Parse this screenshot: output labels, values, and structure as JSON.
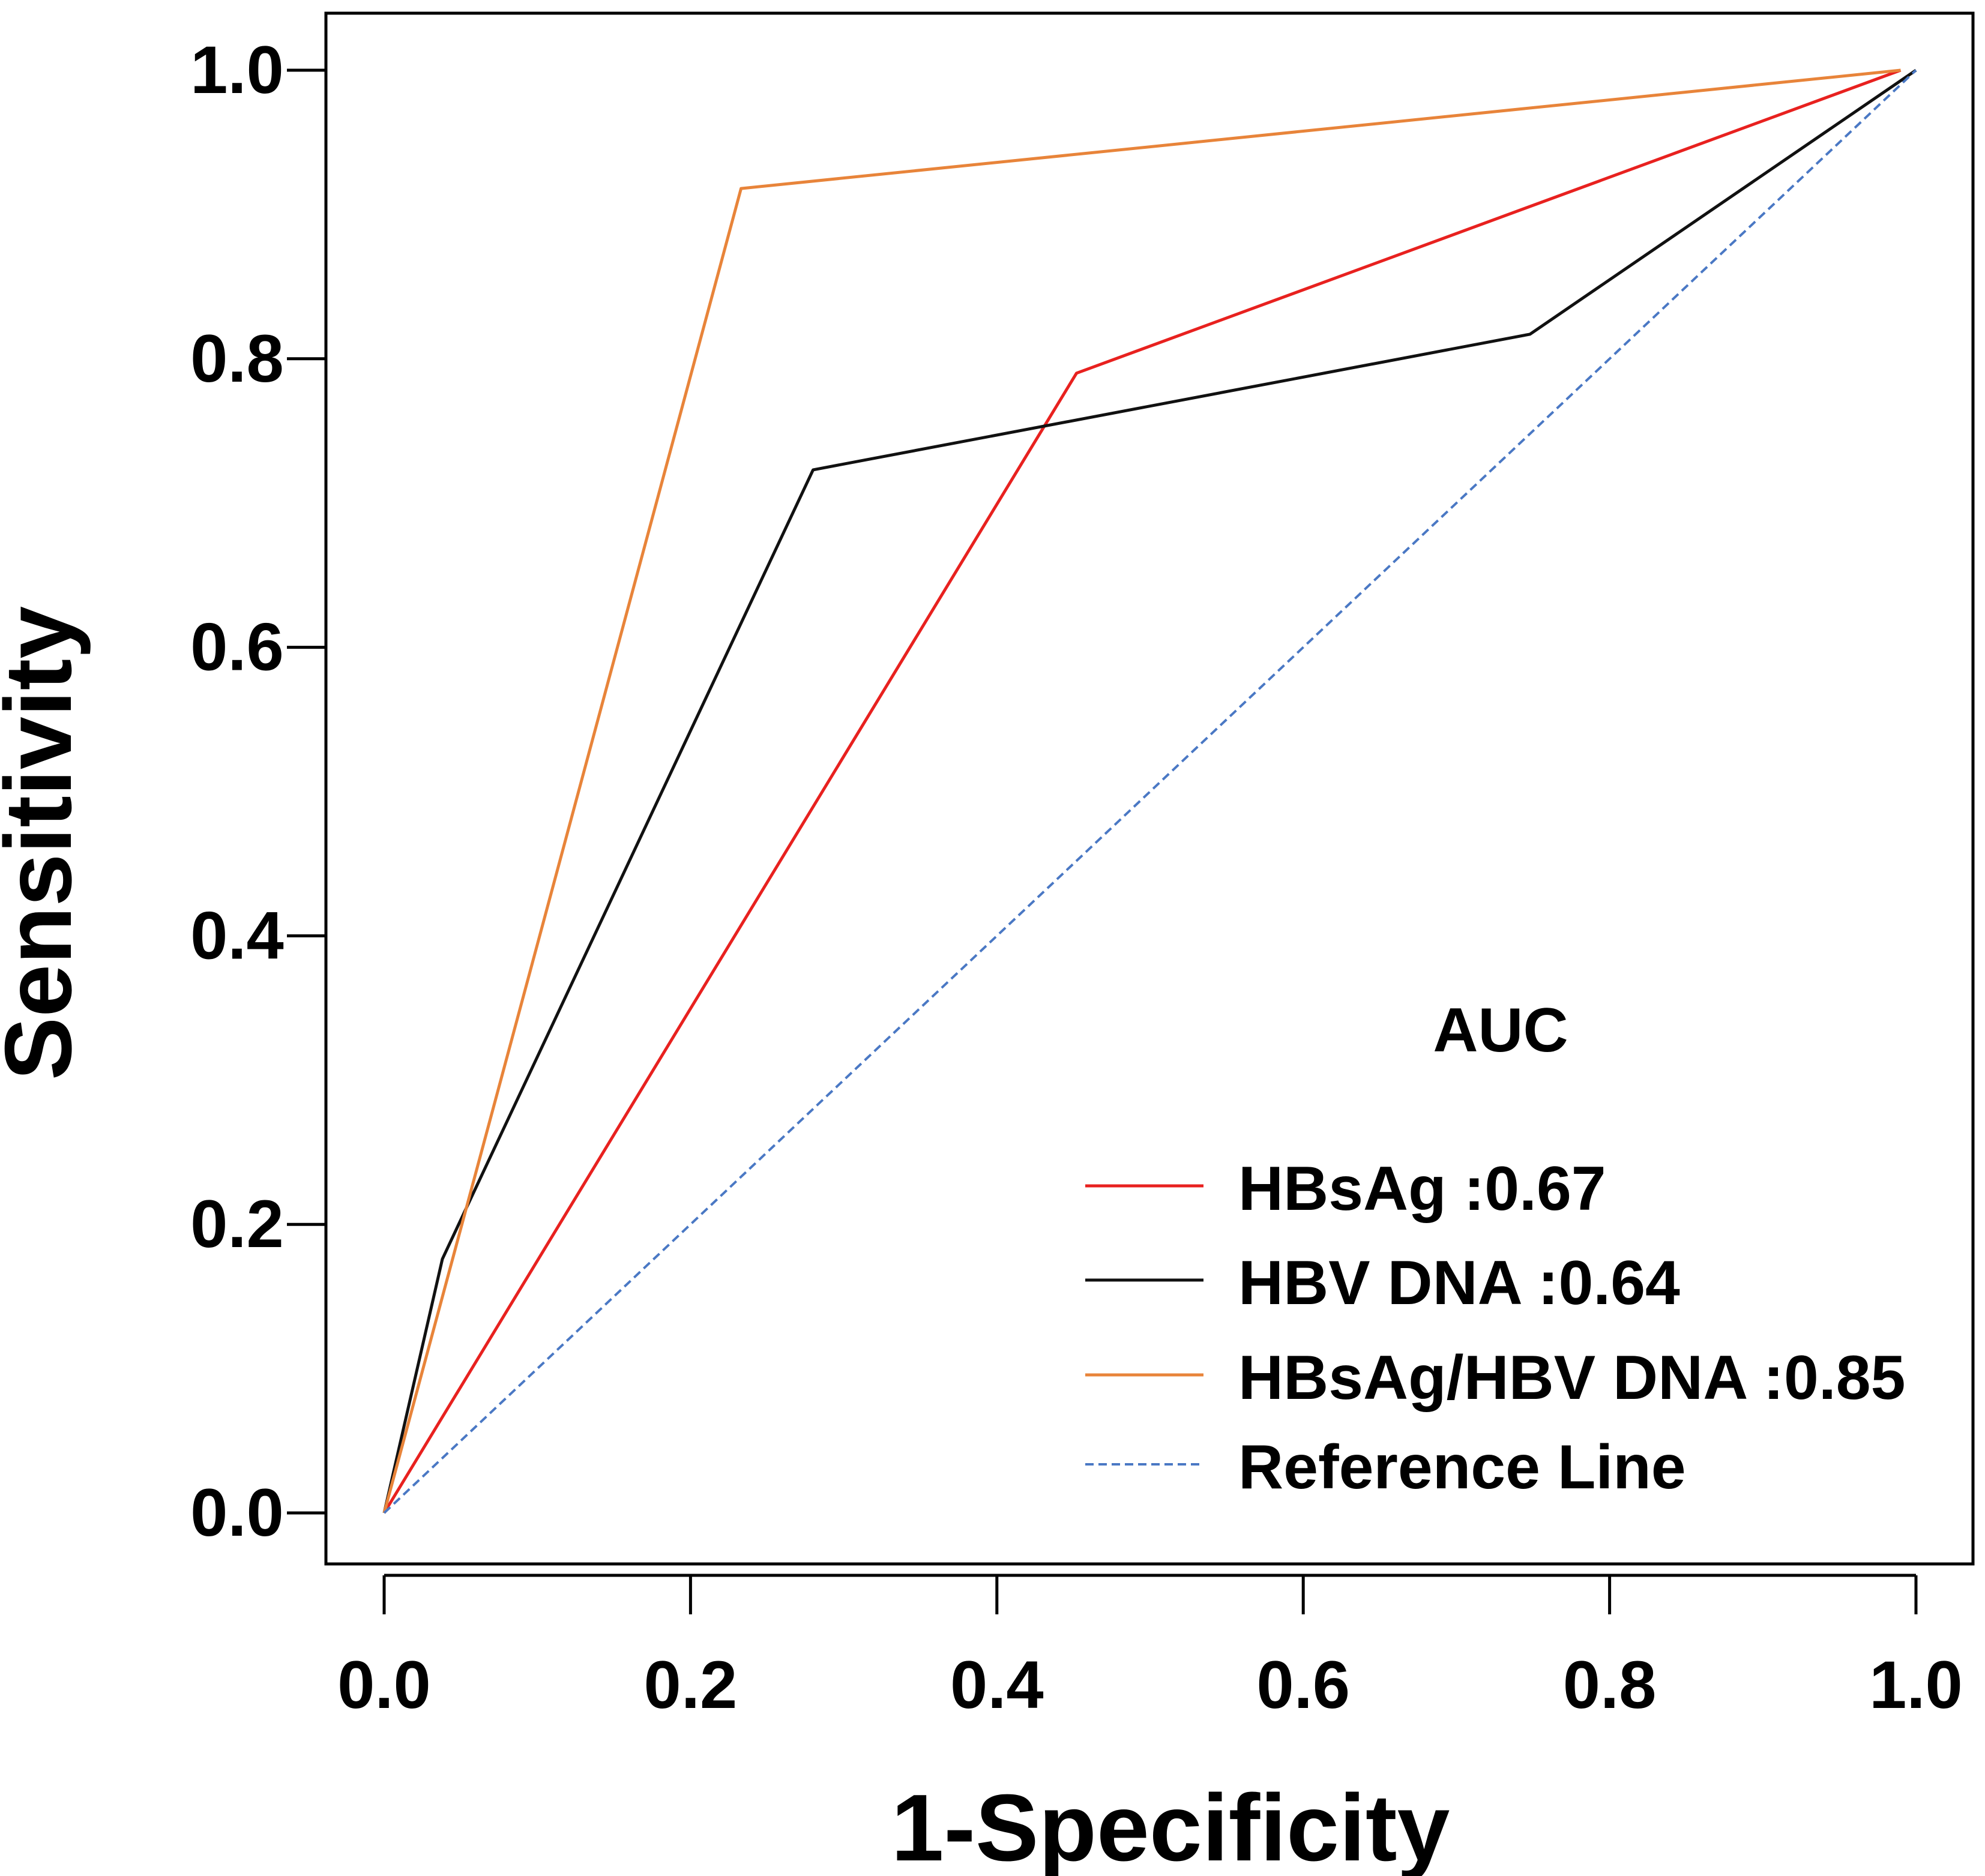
{
  "chart_data": {
    "type": "line",
    "title": "",
    "xlabel": "1-Specificity",
    "ylabel": "Sensitivity",
    "xlim": [
      0,
      1
    ],
    "ylim": [
      0,
      1
    ],
    "x_ticks": [
      "0.0",
      "0.2",
      "0.4",
      "0.6",
      "0.8",
      "1.0"
    ],
    "y_ticks": [
      "0.0",
      "0.2",
      "0.4",
      "0.6",
      "0.8",
      "1.0"
    ],
    "grid": false,
    "legend_position": "bottom-right",
    "legend_title": "AUC",
    "series": [
      {
        "name": "HBsAg",
        "label": "HBsAg :0.67",
        "auc": 0.67,
        "color": "#e8211f",
        "dash": "solid",
        "x": [
          0,
          0.452,
          0.99
        ],
        "y": [
          0,
          0.79,
          1.0
        ]
      },
      {
        "name": "HBV DNA",
        "label": "HBV DNA :0.64",
        "auc": 0.64,
        "color": "#111111",
        "dash": "solid",
        "x": [
          0,
          0.038,
          0.28,
          0.748,
          1.0
        ],
        "y": [
          0,
          0.176,
          0.723,
          0.817,
          1.0
        ]
      },
      {
        "name": "HBsAg/HBV DNA",
        "label": "HBsAg/HBV DNA :0.85",
        "auc": 0.85,
        "color": "#e8843a",
        "dash": "solid",
        "x": [
          0,
          0.233,
          0.99
        ],
        "y": [
          0,
          0.918,
          1.0
        ]
      },
      {
        "name": "Reference Line",
        "label": "Reference Line",
        "color": "#4a78c4",
        "dash": "dashed",
        "x": [
          0,
          1.0
        ],
        "y": [
          0,
          1.0
        ]
      }
    ]
  }
}
